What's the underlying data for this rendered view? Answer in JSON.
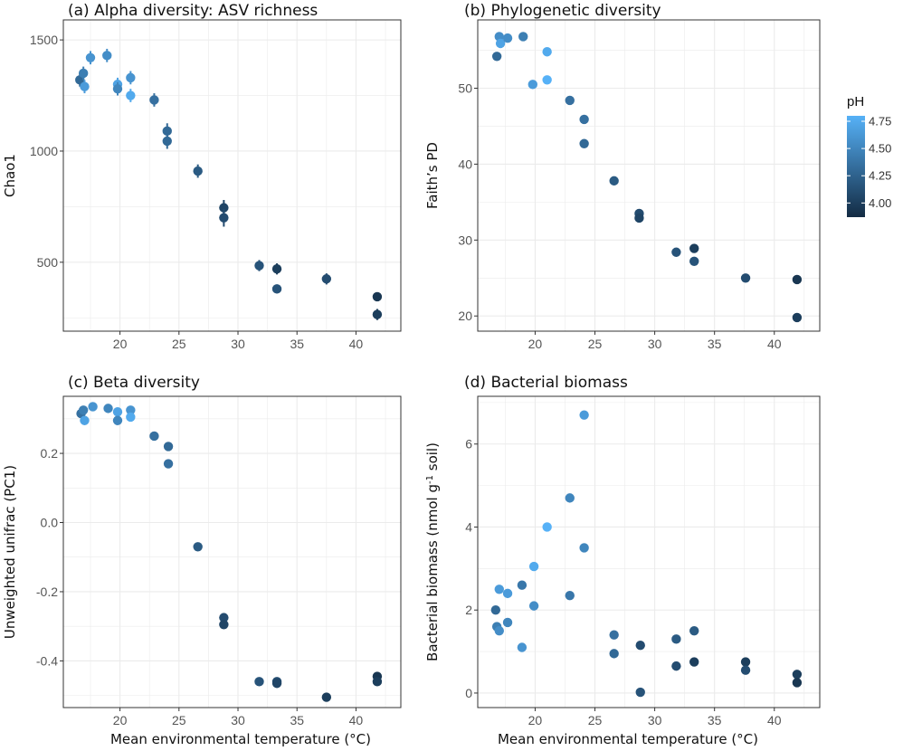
{
  "figure": {
    "xlabel_c": "Mean environmental temperature (°C)",
    "xlabel_d": "Mean environmental temperature (°C)"
  },
  "legend": {
    "title": "pH",
    "ticks": [
      "4.75",
      "4.50",
      "4.25",
      "4.00"
    ],
    "tick_values": [
      4.75,
      4.5,
      4.25,
      4.0
    ],
    "range": [
      3.87,
      4.8
    ],
    "color_low": "#132B43",
    "color_high": "#56B1F7"
  },
  "chart_data": [
    {
      "type": "scatter",
      "title": "(a) Alpha diversity: ASV richness",
      "xlabel": "",
      "ylabel": "Chao1",
      "xlim": [
        15.2,
        43.8
      ],
      "ylim": [
        190,
        1590
      ],
      "xticks": [
        20,
        25,
        30,
        35,
        40
      ],
      "yticks": [
        500,
        1000,
        1500
      ],
      "grid": true,
      "error_bars": true,
      "points": [
        {
          "x": 16.6,
          "y": 1320,
          "err": 30,
          "ph": 4.3
        },
        {
          "x": 16.9,
          "y": 1350,
          "err": 30,
          "ph": 4.45
        },
        {
          "x": 17.0,
          "y": 1290,
          "err": 30,
          "ph": 4.65
        },
        {
          "x": 17.5,
          "y": 1420,
          "err": 30,
          "ph": 4.6
        },
        {
          "x": 18.9,
          "y": 1430,
          "err": 30,
          "ph": 4.55
        },
        {
          "x": 19.8,
          "y": 1300,
          "err": 30,
          "ph": 4.7
        },
        {
          "x": 19.8,
          "y": 1280,
          "err": 30,
          "ph": 4.5
        },
        {
          "x": 20.9,
          "y": 1330,
          "err": 30,
          "ph": 4.6
        },
        {
          "x": 20.9,
          "y": 1250,
          "err": 30,
          "ph": 4.75
        },
        {
          "x": 22.9,
          "y": 1230,
          "err": 30,
          "ph": 4.35
        },
        {
          "x": 24.0,
          "y": 1090,
          "err": 35,
          "ph": 4.3
        },
        {
          "x": 24.0,
          "y": 1045,
          "err": 35,
          "ph": 4.3
        },
        {
          "x": 26.6,
          "y": 910,
          "err": 30,
          "ph": 4.2
        },
        {
          "x": 28.8,
          "y": 745,
          "err": 35,
          "ph": 4.05
        },
        {
          "x": 28.8,
          "y": 700,
          "err": 40,
          "ph": 4.1
        },
        {
          "x": 31.8,
          "y": 485,
          "err": 25,
          "ph": 4.15
        },
        {
          "x": 33.3,
          "y": 470,
          "err": 25,
          "ph": 4.0
        },
        {
          "x": 33.3,
          "y": 380,
          "err": 20,
          "ph": 4.15
        },
        {
          "x": 37.5,
          "y": 425,
          "err": 25,
          "ph": 4.1
        },
        {
          "x": 41.8,
          "y": 345,
          "err": 20,
          "ph": 3.95
        },
        {
          "x": 41.8,
          "y": 265,
          "err": 25,
          "ph": 4.0
        }
      ]
    },
    {
      "type": "scatter",
      "title": "(b) Phylogenetic diversity",
      "xlabel": "",
      "ylabel": "Faith’s PD",
      "xlim": [
        15.2,
        43.8
      ],
      "ylim": [
        18.0,
        59.0
      ],
      "xticks": [
        20,
        25,
        30,
        35,
        40
      ],
      "yticks": [
        20,
        30,
        40,
        50
      ],
      "grid": true,
      "points": [
        {
          "x": 16.8,
          "y": 54.2,
          "ph": 4.3
        },
        {
          "x": 17.0,
          "y": 56.8,
          "ph": 4.55
        },
        {
          "x": 17.1,
          "y": 55.9,
          "ph": 4.7
        },
        {
          "x": 17.7,
          "y": 56.6,
          "ph": 4.55
        },
        {
          "x": 19.0,
          "y": 56.8,
          "ph": 4.45
        },
        {
          "x": 19.8,
          "y": 50.5,
          "ph": 4.65
        },
        {
          "x": 21.0,
          "y": 54.8,
          "ph": 4.75
        },
        {
          "x": 21.0,
          "y": 51.1,
          "ph": 4.8
        },
        {
          "x": 22.9,
          "y": 48.4,
          "ph": 4.35
        },
        {
          "x": 24.1,
          "y": 45.9,
          "ph": 4.35
        },
        {
          "x": 24.1,
          "y": 42.7,
          "ph": 4.3
        },
        {
          "x": 26.6,
          "y": 37.8,
          "ph": 4.2
        },
        {
          "x": 28.7,
          "y": 33.5,
          "ph": 4.1
        },
        {
          "x": 28.7,
          "y": 32.9,
          "ph": 4.05
        },
        {
          "x": 31.8,
          "y": 28.4,
          "ph": 4.15
        },
        {
          "x": 33.3,
          "y": 28.9,
          "ph": 4.0
        },
        {
          "x": 33.3,
          "y": 27.2,
          "ph": 4.15
        },
        {
          "x": 37.6,
          "y": 25.0,
          "ph": 4.1
        },
        {
          "x": 41.9,
          "y": 24.8,
          "ph": 3.95
        },
        {
          "x": 41.9,
          "y": 19.8,
          "ph": 4.0
        }
      ]
    },
    {
      "type": "scatter",
      "title": "(c) Beta diversity",
      "xlabel": "Mean environmental temperature (°C)",
      "ylabel": "Unweighted unifrac (PC1)",
      "xlim": [
        15.2,
        43.8
      ],
      "ylim": [
        -0.535,
        0.365
      ],
      "xticks": [
        20,
        25,
        30,
        35,
        40
      ],
      "yticks": [
        -0.4,
        -0.2,
        0.0,
        0.2
      ],
      "ytick_labels": [
        "-0.4",
        "-0.2",
        "0.0",
        "0.2"
      ],
      "grid": true,
      "points": [
        {
          "x": 16.7,
          "y": 0.315,
          "ph": 4.35
        },
        {
          "x": 16.9,
          "y": 0.325,
          "ph": 4.45
        },
        {
          "x": 17.0,
          "y": 0.295,
          "ph": 4.7
        },
        {
          "x": 17.7,
          "y": 0.335,
          "ph": 4.6
        },
        {
          "x": 19.0,
          "y": 0.33,
          "ph": 4.5
        },
        {
          "x": 19.8,
          "y": 0.32,
          "ph": 4.7
        },
        {
          "x": 19.8,
          "y": 0.295,
          "ph": 4.5
        },
        {
          "x": 20.9,
          "y": 0.325,
          "ph": 4.6
        },
        {
          "x": 20.9,
          "y": 0.305,
          "ph": 4.75
        },
        {
          "x": 22.9,
          "y": 0.25,
          "ph": 4.35
        },
        {
          "x": 24.1,
          "y": 0.22,
          "ph": 4.3
        },
        {
          "x": 24.1,
          "y": 0.17,
          "ph": 4.35
        },
        {
          "x": 26.6,
          "y": -0.07,
          "ph": 4.2
        },
        {
          "x": 28.8,
          "y": -0.275,
          "ph": 4.1
        },
        {
          "x": 28.8,
          "y": -0.295,
          "ph": 4.05
        },
        {
          "x": 31.8,
          "y": -0.46,
          "ph": 4.15
        },
        {
          "x": 33.3,
          "y": -0.46,
          "ph": 4.1
        },
        {
          "x": 33.3,
          "y": -0.465,
          "ph": 4.05
        },
        {
          "x": 37.5,
          "y": -0.505,
          "ph": 4.0
        },
        {
          "x": 41.8,
          "y": -0.445,
          "ph": 3.95
        },
        {
          "x": 41.8,
          "y": -0.46,
          "ph": 4.0
        }
      ]
    },
    {
      "type": "scatter",
      "title": "(d) Bacterial biomass",
      "xlabel": "Mean environmental temperature (°C)",
      "ylabel": "Bacterial biomass (nmol g-1 soil)",
      "ylabel_parts": [
        "Bacterial biomass (nmol g",
        "-1",
        " soil)"
      ],
      "xlim": [
        15.2,
        43.8
      ],
      "ylim": [
        -0.35,
        7.15
      ],
      "xticks": [
        20,
        25,
        30,
        35,
        40
      ],
      "yticks": [
        0,
        2,
        4,
        6
      ],
      "grid": true,
      "points": [
        {
          "x": 16.7,
          "y": 2.0,
          "ph": 4.3
        },
        {
          "x": 16.8,
          "y": 1.6,
          "ph": 4.45
        },
        {
          "x": 17.0,
          "y": 2.5,
          "ph": 4.65
        },
        {
          "x": 17.0,
          "y": 1.5,
          "ph": 4.55
        },
        {
          "x": 17.7,
          "y": 2.4,
          "ph": 4.65
        },
        {
          "x": 17.7,
          "y": 1.7,
          "ph": 4.5
        },
        {
          "x": 18.9,
          "y": 2.6,
          "ph": 4.4
        },
        {
          "x": 18.9,
          "y": 1.1,
          "ph": 4.6
        },
        {
          "x": 19.9,
          "y": 3.05,
          "ph": 4.75
        },
        {
          "x": 19.9,
          "y": 2.1,
          "ph": 4.55
        },
        {
          "x": 21.0,
          "y": 4.0,
          "ph": 4.8
        },
        {
          "x": 22.9,
          "y": 4.7,
          "ph": 4.5
        },
        {
          "x": 22.9,
          "y": 2.35,
          "ph": 4.4
        },
        {
          "x": 24.1,
          "y": 6.7,
          "ph": 4.65
        },
        {
          "x": 24.1,
          "y": 3.5,
          "ph": 4.5
        },
        {
          "x": 26.6,
          "y": 1.4,
          "ph": 4.35
        },
        {
          "x": 26.6,
          "y": 0.95,
          "ph": 4.3
        },
        {
          "x": 28.8,
          "y": 1.15,
          "ph": 4.1
        },
        {
          "x": 28.8,
          "y": 0.02,
          "ph": 4.15
        },
        {
          "x": 31.8,
          "y": 1.3,
          "ph": 4.2
        },
        {
          "x": 31.8,
          "y": 0.65,
          "ph": 4.1
        },
        {
          "x": 33.3,
          "y": 1.5,
          "ph": 4.2
        },
        {
          "x": 33.3,
          "y": 0.75,
          "ph": 4.0
        },
        {
          "x": 37.6,
          "y": 0.75,
          "ph": 4.0
        },
        {
          "x": 37.6,
          "y": 0.55,
          "ph": 4.1
        },
        {
          "x": 41.9,
          "y": 0.45,
          "ph": 4.0
        },
        {
          "x": 41.9,
          "y": 0.25,
          "ph": 3.95
        }
      ]
    }
  ]
}
